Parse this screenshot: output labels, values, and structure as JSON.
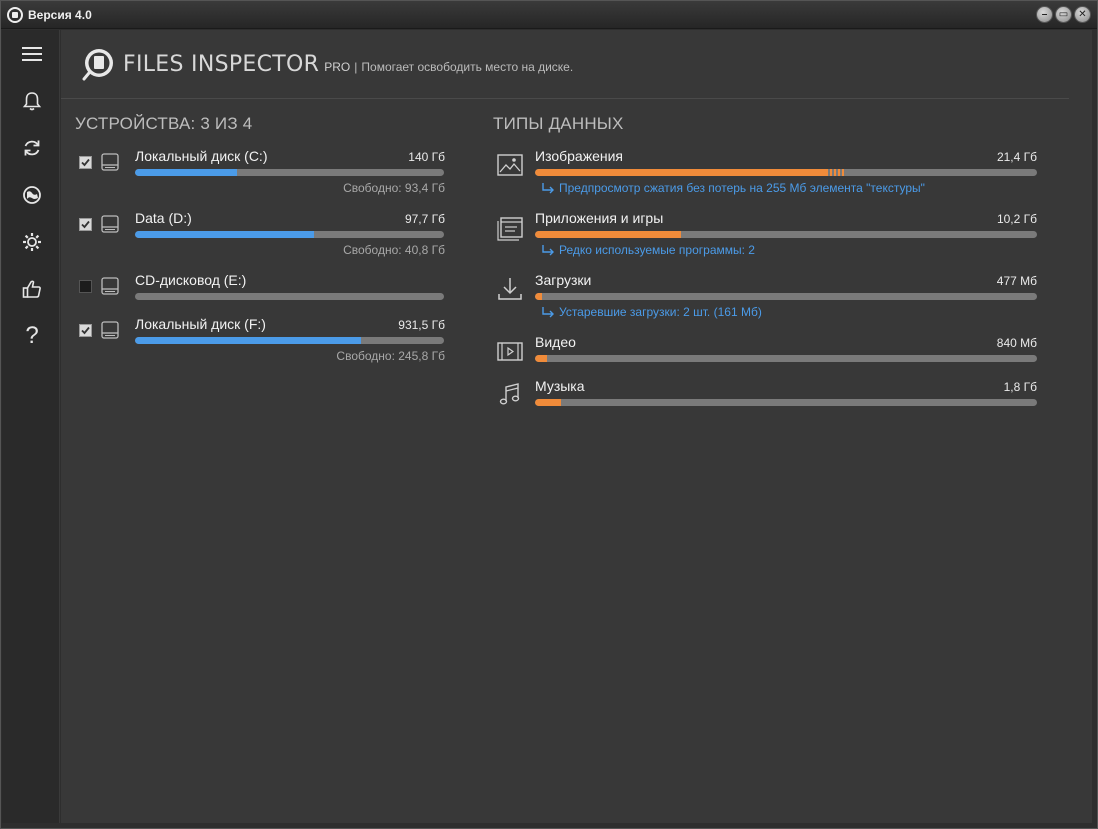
{
  "window": {
    "title": "Версия 4.0",
    "controls": [
      "minimize",
      "maximize",
      "close"
    ]
  },
  "sidebar": {
    "items": [
      {
        "name": "menu-icon"
      },
      {
        "name": "bell-icon"
      },
      {
        "name": "refresh-icon"
      },
      {
        "name": "globe-icon"
      },
      {
        "name": "gear-icon"
      },
      {
        "name": "thumbs-up-icon"
      },
      {
        "name": "help-icon",
        "label": "?"
      }
    ]
  },
  "header": {
    "brand": "FILES INSPECTOR",
    "pro": "PRO",
    "separator": "|",
    "tagline": "Помогает освободить место на диске."
  },
  "devices": {
    "title": "УСТРОЙСТВА: 3 ИЗ 4",
    "items": [
      {
        "name": "Локальный диск (C:)",
        "size": "140 Гб",
        "free": "Свободно: 93,4 Гб",
        "checked": true,
        "used_fraction": 0.33
      },
      {
        "name": "Data (D:)",
        "size": "97,7 Гб",
        "free": "Свободно: 40,8 Гб",
        "checked": true,
        "used_fraction": 0.58
      },
      {
        "name": "CD-дисковод (E:)",
        "size": "",
        "free": "",
        "checked": false,
        "used_fraction": 0
      },
      {
        "name": "Локальный диск (F:)",
        "size": "931,5 Гб",
        "free": "Свободно: 245,8 Гб",
        "checked": true,
        "used_fraction": 0.73
      }
    ]
  },
  "data_types": {
    "title": "ТИПЫ ДАННЫХ",
    "items": [
      {
        "name": "Изображения",
        "size": "21,4 Гб",
        "icon": "image-icon",
        "fraction": 0.58,
        "link": "Предпросмотр сжатия без потерь на 255 Мб элемента \"текстуры\""
      },
      {
        "name": "Приложения и игры",
        "size": "10,2 Гб",
        "icon": "apps-icon",
        "fraction": 0.29,
        "link": "Редко используемые программы: 2"
      },
      {
        "name": "Загрузки",
        "size": "477 Мб",
        "icon": "download-icon",
        "fraction": 0.013,
        "link": "Устаревшие загрузки: 2 шт. (161 Мб)"
      },
      {
        "name": "Видео",
        "size": "840 Мб",
        "icon": "video-icon",
        "fraction": 0.023,
        "link": ""
      },
      {
        "name": "Музыка",
        "size": "1,8 Гб",
        "icon": "music-icon",
        "fraction": 0.052,
        "link": ""
      }
    ]
  },
  "colors": {
    "device_bar": "#4b9be8",
    "type_bar": "#f08b3a",
    "link": "#4b9be8",
    "background": "#383838"
  }
}
